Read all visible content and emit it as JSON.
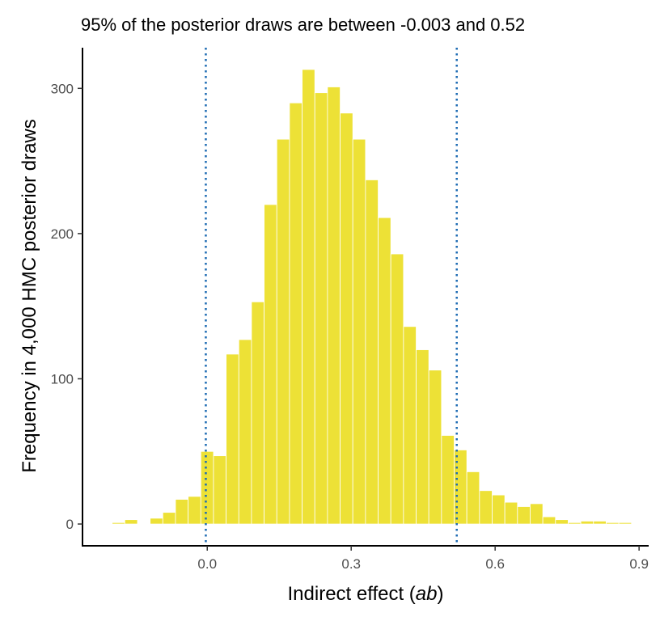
{
  "chart_data": {
    "type": "bar",
    "title": "95% of the posterior draws are between -0.003 and 0.52",
    "xlabel_prefix": "Indirect effect (",
    "xlabel_italic": "ab",
    "xlabel_suffix": ")",
    "ylabel": "Frequency in 4,000 HMC posterior draws",
    "xlim": [
      -0.26,
      0.92
    ],
    "ylim": [
      -15,
      328
    ],
    "x_ticks": [
      0.0,
      0.3,
      0.6,
      0.9
    ],
    "x_tick_labels": [
      "0.0",
      "0.3",
      "0.6",
      "0.9"
    ],
    "y_ticks": [
      0,
      100,
      200,
      300
    ],
    "y_tick_labels": [
      "0",
      "100",
      "200",
      "300"
    ],
    "bin_width": 0.0264,
    "bin_centers": [
      -0.185,
      -0.1586,
      -0.1322,
      -0.1058,
      -0.0794,
      -0.053,
      -0.0266,
      -0.0002,
      0.0262,
      0.0526,
      0.079,
      0.1054,
      0.1318,
      0.1582,
      0.1846,
      0.211,
      0.2374,
      0.2638,
      0.2902,
      0.3166,
      0.343,
      0.3694,
      0.3958,
      0.4222,
      0.4486,
      0.475,
      0.5014,
      0.5278,
      0.5542,
      0.5806,
      0.607,
      0.6334,
      0.6598,
      0.6862,
      0.7126,
      0.739,
      0.7654,
      0.7918,
      0.8182,
      0.8446,
      0.871
    ],
    "values": [
      1,
      3,
      0,
      4,
      8,
      17,
      19,
      50,
      47,
      117,
      127,
      153,
      220,
      265,
      290,
      313,
      297,
      301,
      283,
      265,
      237,
      211,
      186,
      136,
      120,
      106,
      61,
      51,
      36,
      23,
      20,
      15,
      12,
      14,
      5,
      3,
      1,
      2,
      2,
      1,
      1
    ],
    "bar_color": "#EDE136",
    "interval": {
      "lower": -0.003,
      "upper": 0.52,
      "color": "#1D6BB3",
      "style": "dotted"
    },
    "grid": false,
    "legend": "none"
  }
}
